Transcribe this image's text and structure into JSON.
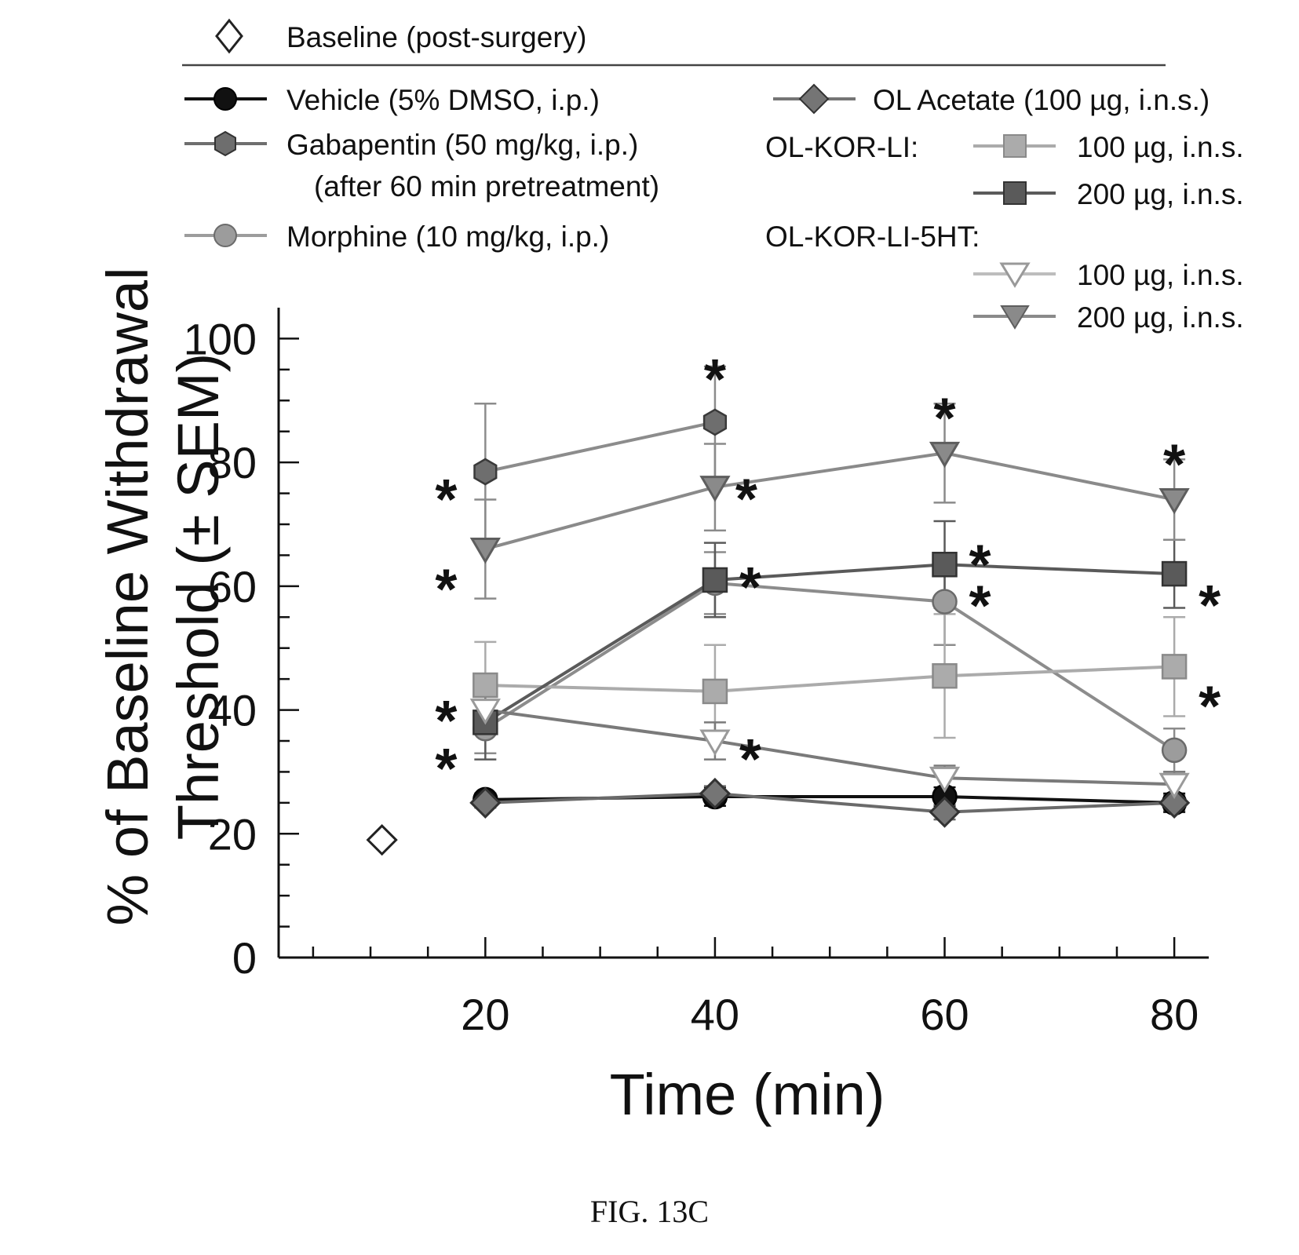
{
  "figure_caption": "FIG. 13C",
  "chart_data": {
    "type": "line",
    "xlabel": "Time (min)",
    "ylabel_line1": "% of Baseline Withdrawal",
    "ylabel_line2": "Threshold (± SEM)",
    "xlim": [
      2,
      83
    ],
    "ylim": [
      0,
      105
    ],
    "x_ticks": [
      20,
      40,
      60,
      80
    ],
    "y_ticks": [
      0,
      20,
      40,
      60,
      80,
      100
    ],
    "significance_marker": "*",
    "baseline": {
      "label": "Baseline (post-surgery)",
      "x": 11,
      "y": 19,
      "marker": "diamond-open",
      "color": "#ffffff"
    },
    "legend": {
      "ol_kor_li_header": "OL-KOR-LI:",
      "ol_kor_li_5ht_header": "OL-KOR-LI-5HT:"
    },
    "series": [
      {
        "key": "vehicle",
        "name": "Vehicle (5% DMSO, i.p.)",
        "marker": "circle",
        "color": "#111111",
        "x": [
          20,
          40,
          60,
          80
        ],
        "y": [
          25.5,
          26,
          26,
          25
        ],
        "err": [
          1,
          1.5,
          1.5,
          1.5
        ],
        "sig": [
          false,
          false,
          false,
          false
        ]
      },
      {
        "key": "gabapentin",
        "name": "Gabapentin (50 mg/kg, i.p.)",
        "name_line2": "(after 60 min pretreatment)",
        "marker": "hexagon",
        "color": "#6e6e6e",
        "x": [
          20,
          40
        ],
        "y": [
          78.5,
          86.5
        ],
        "err": [
          11,
          9
        ],
        "sig": [
          true,
          true
        ]
      },
      {
        "key": "morphine",
        "name": "Morphine (10 mg/kg, i.p.)",
        "marker": "circle",
        "color": "#9c9c9c",
        "x": [
          20,
          40,
          60,
          80
        ],
        "y": [
          37,
          60.5,
          57.5,
          33.5
        ],
        "err": [
          4,
          5,
          7,
          3.5
        ],
        "sig": [
          true,
          true,
          true,
          false
        ]
      },
      {
        "key": "ol_acetate",
        "name": "OL Acetate (100 µg, i.n.s.)",
        "marker": "diamond",
        "color": "#757575",
        "x": [
          20,
          40,
          60,
          80
        ],
        "y": [
          25,
          26.5,
          23.5,
          25
        ],
        "err": [
          0.8,
          1.2,
          1.2,
          1.2
        ],
        "sig": [
          false,
          false,
          false,
          false
        ]
      },
      {
        "key": "kor_100",
        "name": "100 µg, i.n.s.",
        "marker": "square",
        "color": "#ababab",
        "x": [
          20,
          40,
          60,
          80
        ],
        "y": [
          44,
          43,
          45.5,
          47
        ],
        "err": [
          7,
          7.5,
          10,
          8
        ],
        "sig": [
          true,
          false,
          false,
          true
        ]
      },
      {
        "key": "kor_200",
        "name": "200 µg, i.n.s.",
        "marker": "square",
        "color": "#5a5a5a",
        "x": [
          20,
          40,
          60,
          80
        ],
        "y": [
          38,
          61,
          63.5,
          62
        ],
        "err": [
          6,
          6,
          7,
          5.5
        ],
        "sig": [
          false,
          false,
          true,
          true
        ]
      },
      {
        "key": "ht_100",
        "name": "100 µg, i.n.s.",
        "marker": "triangle-down-open",
        "color": "#ffffff",
        "x": [
          20,
          40,
          60,
          80
        ],
        "y": [
          40,
          35,
          29,
          28
        ],
        "err": [
          3,
          3,
          2,
          2
        ],
        "sig": [
          false,
          true,
          false,
          false
        ]
      },
      {
        "key": "ht_200",
        "name": "200 µg, i.n.s.",
        "marker": "triangle-down",
        "color": "#8a8a8a",
        "x": [
          20,
          40,
          60,
          80
        ],
        "y": [
          66,
          76,
          81.5,
          74
        ],
        "err": [
          8,
          7,
          8,
          6.5
        ],
        "sig": [
          true,
          true,
          true,
          true
        ]
      }
    ]
  }
}
